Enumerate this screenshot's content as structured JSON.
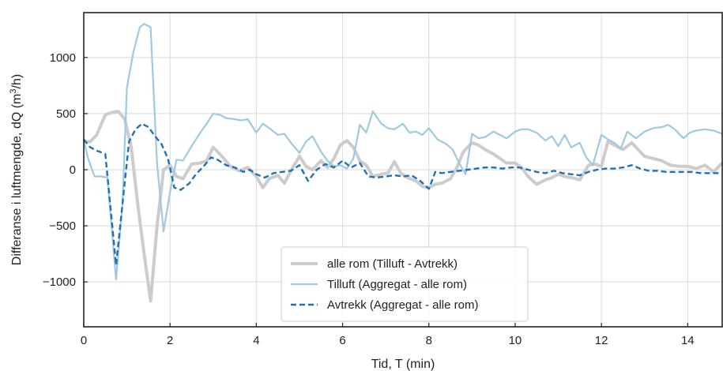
{
  "chart_data": {
    "type": "line",
    "xlabel": "Tid, T (min)",
    "ylabel_main": "Differanse i luftmengde, dQ (m",
    "ylabel_sup": "3",
    "ylabel_tail": "/h)",
    "xlim": [
      0,
      14.8
    ],
    "ylim": [
      -1400,
      1400
    ],
    "x_ticks": [
      0,
      2,
      4,
      6,
      8,
      10,
      12,
      14
    ],
    "x_tick_labels": [
      "0",
      "2",
      "4",
      "6",
      "8",
      "10",
      "12",
      "14"
    ],
    "y_ticks": [
      -1000,
      -500,
      0,
      500,
      1000
    ],
    "y_tick_labels": [
      "−1000",
      "−500",
      "0",
      "500",
      "1000"
    ],
    "grid": true,
    "legend_position": "lower-center",
    "series": [
      {
        "name": "alle rom (Tilluft - Avtrekk)",
        "color": "#cccccc",
        "style": "solid",
        "x": [
          0,
          0.15,
          0.3,
          0.5,
          0.65,
          0.8,
          0.95,
          1.1,
          1.25,
          1.4,
          1.55,
          1.7,
          1.85,
          2.0,
          2.15,
          2.3,
          2.5,
          2.7,
          2.85,
          3.0,
          3.2,
          3.4,
          3.6,
          3.8,
          4.0,
          4.15,
          4.3,
          4.5,
          4.65,
          4.8,
          5.0,
          5.15,
          5.3,
          5.5,
          5.65,
          5.8,
          5.95,
          6.1,
          6.25,
          6.4,
          6.55,
          6.7,
          6.9,
          7.05,
          7.2,
          7.35,
          7.5,
          7.7,
          7.85,
          8.0,
          8.15,
          8.3,
          8.5,
          8.65,
          8.8,
          9.0,
          9.15,
          9.3,
          9.5,
          9.65,
          9.8,
          10.0,
          10.15,
          10.3,
          10.5,
          10.7,
          10.85,
          11.0,
          11.15,
          11.3,
          11.5,
          11.7,
          11.85,
          12.0,
          12.15,
          12.3,
          12.5,
          12.7,
          12.85,
          13.0,
          13.2,
          13.4,
          13.6,
          13.8,
          14.0,
          14.2,
          14.4,
          14.6,
          14.8
        ],
        "y": [
          250,
          250,
          310,
          490,
          510,
          520,
          450,
          200,
          -300,
          -750,
          -1170,
          -500,
          0,
          40,
          -60,
          -80,
          50,
          60,
          80,
          200,
          120,
          30,
          -10,
          20,
          -60,
          -160,
          -80,
          -50,
          -120,
          -10,
          120,
          30,
          0,
          80,
          20,
          100,
          220,
          260,
          200,
          80,
          40,
          -60,
          -40,
          -30,
          70,
          -30,
          -70,
          -100,
          -150,
          -160,
          -130,
          -120,
          -80,
          20,
          160,
          240,
          220,
          180,
          140,
          100,
          60,
          60,
          20,
          -60,
          -130,
          -90,
          -70,
          -40,
          -60,
          -70,
          -90,
          40,
          50,
          30,
          250,
          220,
          180,
          240,
          180,
          120,
          100,
          80,
          40,
          30,
          30,
          10,
          40,
          -20,
          60
        ]
      },
      {
        "name": "Tilluft (Aggregat - alle rom)",
        "color": "#9ecae1",
        "style": "solid",
        "x": [
          0,
          0.1,
          0.25,
          0.4,
          0.55,
          0.75,
          0.9,
          1.0,
          1.15,
          1.3,
          1.4,
          1.55,
          1.7,
          1.85,
          2.0,
          2.15,
          2.3,
          2.5,
          2.7,
          2.85,
          3.0,
          3.15,
          3.3,
          3.5,
          3.65,
          3.8,
          4.0,
          4.15,
          4.3,
          4.5,
          4.65,
          4.8,
          5.0,
          5.15,
          5.3,
          5.5,
          5.65,
          5.8,
          5.95,
          6.1,
          6.25,
          6.4,
          6.55,
          6.7,
          6.9,
          7.05,
          7.2,
          7.4,
          7.55,
          7.7,
          7.85,
          8.0,
          8.2,
          8.4,
          8.55,
          8.7,
          8.85,
          9.0,
          9.15,
          9.3,
          9.5,
          9.65,
          9.8,
          10.0,
          10.15,
          10.3,
          10.5,
          10.7,
          10.85,
          11.0,
          11.15,
          11.3,
          11.5,
          11.65,
          11.8,
          12.0,
          12.15,
          12.3,
          12.45,
          12.6,
          12.8,
          13.0,
          13.2,
          13.4,
          13.55,
          13.7,
          13.9,
          14.05,
          14.2,
          14.4,
          14.6,
          14.8
        ],
        "y": [
          260,
          100,
          -60,
          -60,
          -70,
          -980,
          -300,
          730,
          1050,
          1270,
          1300,
          1270,
          50,
          -550,
          -200,
          90,
          80,
          210,
          330,
          410,
          500,
          490,
          460,
          450,
          440,
          450,
          330,
          410,
          370,
          310,
          320,
          240,
          150,
          250,
          300,
          160,
          80,
          30,
          40,
          10,
          100,
          400,
          330,
          520,
          410,
          370,
          360,
          410,
          330,
          340,
          310,
          370,
          270,
          230,
          180,
          60,
          -40,
          320,
          280,
          290,
          340,
          310,
          280,
          340,
          360,
          360,
          330,
          260,
          300,
          210,
          310,
          200,
          240,
          110,
          40,
          310,
          270,
          240,
          190,
          340,
          280,
          340,
          370,
          380,
          400,
          360,
          280,
          330,
          350,
          360,
          350,
          320
        ]
      },
      {
        "name": "Avtrekk (Aggregat - alle rom)",
        "color": "#2171b5",
        "style": "dashed",
        "x": [
          0,
          0.15,
          0.3,
          0.5,
          0.75,
          0.9,
          1.05,
          1.2,
          1.35,
          1.5,
          1.65,
          1.8,
          1.95,
          2.1,
          2.25,
          2.45,
          2.6,
          2.8,
          2.95,
          3.1,
          3.3,
          3.5,
          3.7,
          3.85,
          4.0,
          4.2,
          4.4,
          4.6,
          4.8,
          5.0,
          5.2,
          5.4,
          5.6,
          5.8,
          6.0,
          6.2,
          6.4,
          6.6,
          6.8,
          7.0,
          7.2,
          7.4,
          7.6,
          7.8,
          8.0,
          8.15,
          8.3,
          8.5,
          8.7,
          8.9,
          9.1,
          9.3,
          9.5,
          9.7,
          9.9,
          10.1,
          10.3,
          10.5,
          10.7,
          10.9,
          11.1,
          11.3,
          11.5,
          11.7,
          11.9,
          12.1,
          12.3,
          12.5,
          12.7,
          12.9,
          13.1,
          13.3,
          13.5,
          13.7,
          13.9,
          14.1,
          14.3,
          14.5,
          14.7,
          14.8
        ],
        "y": [
          270,
          200,
          170,
          140,
          -850,
          -300,
          250,
          360,
          410,
          380,
          300,
          230,
          100,
          -160,
          -180,
          -120,
          -40,
          40,
          110,
          90,
          40,
          20,
          -20,
          0,
          -40,
          -70,
          -30,
          -20,
          -10,
          40,
          -100,
          0,
          50,
          20,
          80,
          20,
          60,
          -60,
          -70,
          -60,
          -50,
          -60,
          -50,
          -100,
          -170,
          -20,
          -30,
          -20,
          -10,
          0,
          10,
          20,
          20,
          10,
          20,
          20,
          0,
          -20,
          -30,
          -10,
          -30,
          -40,
          -50,
          -20,
          0,
          10,
          10,
          20,
          40,
          10,
          -10,
          -10,
          -20,
          -20,
          -20,
          -20,
          -30,
          -30,
          -30,
          -30
        ]
      }
    ]
  }
}
